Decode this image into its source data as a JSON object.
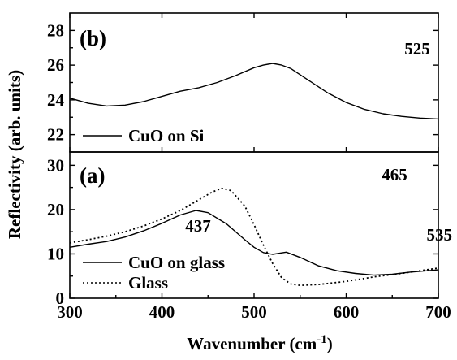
{
  "chart_data": {
    "type": "line",
    "xlabel": "Wavenumber (cm",
    "xlabel_superscript": "-1",
    "xlabel_close": ")",
    "ylabel": "Reflectivity (arb. units)",
    "xlim": [
      300,
      700
    ],
    "x_ticks": [
      "300",
      "400",
      "500",
      "600",
      "700"
    ],
    "panels": [
      {
        "label": "(b)",
        "ylim": [
          21,
          29
        ],
        "y_ticks": [
          "22",
          "24",
          "26",
          "28"
        ],
        "legend_position": "bottom-left",
        "annotations": [
          {
            "text": "525",
            "x": 525,
            "y": 26.1
          }
        ],
        "series": [
          {
            "name": "CuO on Si",
            "style": "solid",
            "color": "#000000",
            "x": [
              300,
              320,
              340,
              360,
              380,
              400,
              420,
              440,
              460,
              480,
              500,
              510,
              520,
              530,
              540,
              560,
              580,
              600,
              620,
              640,
              660,
              680,
              700
            ],
            "y": [
              24.1,
              23.8,
              23.65,
              23.7,
              23.9,
              24.2,
              24.5,
              24.7,
              25.0,
              25.4,
              25.85,
              26.0,
              26.1,
              26.0,
              25.8,
              25.1,
              24.4,
              23.85,
              23.45,
              23.2,
              23.05,
              22.95,
              22.9
            ]
          }
        ]
      },
      {
        "label": "(a)",
        "ylim": [
          0,
          33
        ],
        "y_ticks": [
          "0",
          "10",
          "20",
          "30"
        ],
        "legend_position": "bottom-left",
        "annotations": [
          {
            "text": "465",
            "x": 465,
            "y": 24.8
          },
          {
            "text": "437",
            "x": 437,
            "y": 19.8
          },
          {
            "text": "535",
            "x": 535,
            "y": 10.5
          }
        ],
        "series": [
          {
            "name": "CuO on glass",
            "style": "solid",
            "color": "#000000",
            "x": [
              300,
              320,
              340,
              360,
              380,
              400,
              420,
              437,
              450,
              470,
              490,
              500,
              510,
              520,
              535,
              550,
              570,
              590,
              610,
              630,
              650,
              670,
              700
            ],
            "y": [
              11.5,
              12.2,
              12.8,
              13.8,
              15.2,
              16.9,
              18.8,
              19.8,
              19.3,
              16.8,
              13.2,
              11.5,
              10.3,
              9.9,
              10.4,
              9.2,
              7.3,
              6.2,
              5.6,
              5.2,
              5.4,
              5.9,
              6.4
            ]
          },
          {
            "name": "Glass",
            "style": "dotted",
            "color": "#000000",
            "x": [
              300,
              320,
              340,
              360,
              380,
              400,
              420,
              440,
              455,
              465,
              475,
              490,
              500,
              510,
              520,
              530,
              540,
              550,
              570,
              600,
              630,
              660,
              700
            ],
            "y": [
              12.5,
              13.2,
              14.0,
              15.0,
              16.3,
              17.9,
              19.8,
              22.2,
              24.0,
              24.8,
              24.3,
              20.8,
              16.6,
              12.0,
              7.9,
              4.6,
              3.2,
              2.9,
              3.1,
              3.8,
              4.8,
              5.6,
              6.8
            ]
          }
        ]
      }
    ]
  }
}
